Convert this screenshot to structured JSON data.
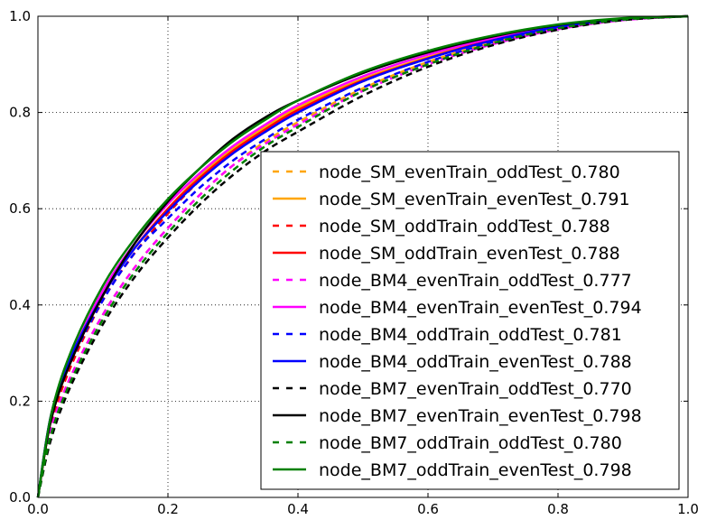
{
  "chart_data": {
    "type": "line",
    "title": "",
    "xlabel": "",
    "ylabel": "",
    "xlim": [
      0,
      1
    ],
    "ylim": [
      0,
      1
    ],
    "grid": true,
    "legend_position": "lower-right",
    "x_ticks": [
      "0.0",
      "0.2",
      "0.4",
      "0.6",
      "0.8",
      "1.0"
    ],
    "y_ticks": [
      "0.0",
      "0.2",
      "0.4",
      "0.6",
      "0.8",
      "1.0"
    ],
    "x": [
      0,
      0.02,
      0.05,
      0.1,
      0.15,
      0.2,
      0.25,
      0.3,
      0.35,
      0.4,
      0.5,
      0.6,
      0.7,
      0.8,
      0.9,
      1.0
    ],
    "series": [
      {
        "name": "node_SM_evenTrain_oddTest_0.780",
        "color": "#FFA500",
        "dash": "dashed",
        "values": [
          0,
          0.14,
          0.25,
          0.38,
          0.48,
          0.56,
          0.63,
          0.69,
          0.74,
          0.78,
          0.85,
          0.905,
          0.945,
          0.975,
          0.993,
          1.0
        ]
      },
      {
        "name": "node_SM_evenTrain_evenTest_0.791",
        "color": "#FFA500",
        "dash": "solid",
        "values": [
          0,
          0.16,
          0.28,
          0.42,
          0.52,
          0.6,
          0.67,
          0.725,
          0.77,
          0.81,
          0.87,
          0.915,
          0.953,
          0.98,
          0.995,
          1.0
        ]
      },
      {
        "name": "node_SM_oddTrain_oddTest_0.788",
        "color": "#FF0000",
        "dash": "dashed",
        "values": [
          0,
          0.15,
          0.27,
          0.41,
          0.51,
          0.59,
          0.66,
          0.715,
          0.76,
          0.8,
          0.865,
          0.912,
          0.95,
          0.978,
          0.994,
          1.0
        ]
      },
      {
        "name": "node_SM_oddTrain_evenTest_0.788",
        "color": "#FF0000",
        "dash": "solid",
        "values": [
          0,
          0.16,
          0.28,
          0.42,
          0.52,
          0.6,
          0.665,
          0.72,
          0.765,
          0.805,
          0.867,
          0.913,
          0.951,
          0.979,
          0.994,
          1.0
        ]
      },
      {
        "name": "node_BM4_evenTrain_oddTest_0.777",
        "color": "#FF00FF",
        "dash": "dashed",
        "values": [
          0,
          0.14,
          0.25,
          0.38,
          0.48,
          0.56,
          0.63,
          0.69,
          0.735,
          0.775,
          0.845,
          0.9,
          0.942,
          0.973,
          0.992,
          1.0
        ]
      },
      {
        "name": "node_BM4_evenTrain_evenTest_0.794",
        "color": "#FF00FF",
        "dash": "solid",
        "values": [
          0,
          0.17,
          0.29,
          0.43,
          0.53,
          0.61,
          0.675,
          0.73,
          0.775,
          0.815,
          0.875,
          0.92,
          0.955,
          0.981,
          0.995,
          1.0
        ]
      },
      {
        "name": "node_BM4_oddTrain_oddTest_0.781",
        "color": "#0000FF",
        "dash": "dashed",
        "values": [
          0,
          0.16,
          0.28,
          0.41,
          0.51,
          0.58,
          0.645,
          0.7,
          0.745,
          0.785,
          0.852,
          0.905,
          0.946,
          0.976,
          0.993,
          1.0
        ]
      },
      {
        "name": "node_BM4_oddTrain_evenTest_0.788",
        "color": "#0000FF",
        "dash": "solid",
        "values": [
          0,
          0.17,
          0.29,
          0.42,
          0.52,
          0.595,
          0.66,
          0.715,
          0.76,
          0.8,
          0.865,
          0.912,
          0.95,
          0.978,
          0.994,
          1.0
        ]
      },
      {
        "name": "node_BM7_evenTrain_oddTest_0.770",
        "color": "#000000",
        "dash": "dashed",
        "values": [
          0,
          0.12,
          0.23,
          0.36,
          0.46,
          0.54,
          0.61,
          0.67,
          0.72,
          0.76,
          0.835,
          0.895,
          0.94,
          0.972,
          0.992,
          1.0
        ]
      },
      {
        "name": "node_BM7_evenTrain_evenTest_0.798",
        "color": "#000000",
        "dash": "solid",
        "values": [
          0,
          0.16,
          0.28,
          0.42,
          0.53,
          0.615,
          0.685,
          0.745,
          0.79,
          0.825,
          0.882,
          0.925,
          0.958,
          0.982,
          0.995,
          1.0
        ]
      },
      {
        "name": "node_BM7_oddTrain_oddTest_0.780",
        "color": "#008000",
        "dash": "dashed",
        "values": [
          0,
          0.13,
          0.24,
          0.37,
          0.47,
          0.55,
          0.62,
          0.68,
          0.73,
          0.77,
          0.845,
          0.9,
          0.944,
          0.975,
          0.993,
          1.0
        ]
      },
      {
        "name": "node_BM7_oddTrain_evenTest_0.798",
        "color": "#008000",
        "dash": "solid",
        "values": [
          0,
          0.17,
          0.3,
          0.44,
          0.54,
          0.62,
          0.685,
          0.74,
          0.785,
          0.825,
          0.885,
          0.928,
          0.96,
          0.983,
          0.996,
          1.0
        ]
      }
    ]
  }
}
